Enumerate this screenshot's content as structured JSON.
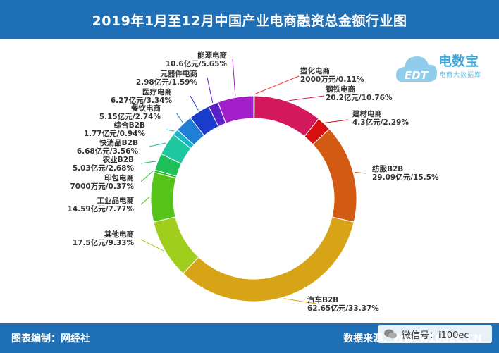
{
  "header": {
    "title": "2019年1月至12月中国产业电商融资总金额行业图"
  },
  "footer": {
    "left": "图表编制：网经社",
    "right": "数据来源：WWW.100EC.CN",
    "watermark": "微信号：i100ec"
  },
  "logo": {
    "text": "电数宝",
    "sub": "电商大数据库",
    "badge": "EDT"
  },
  "colors": {
    "header_bg": "#1e6fb5",
    "footer_bg": "#1e6fb5"
  },
  "chart_data": {
    "type": "pie",
    "style": "donut",
    "slices": [
      {
        "name": "塑化电商",
        "value": 0.2,
        "label": "2000万元/0.11%",
        "color": "#ff3030"
      },
      {
        "name": "钢铁电商",
        "value": 20.2,
        "label": "20.2亿元/10.76%",
        "color": "#d4185c"
      },
      {
        "name": "建材电商",
        "value": 4.3,
        "label": "4.3亿元/2.29%",
        "color": "#d81010"
      },
      {
        "name": "纺服B2B",
        "value": 29.09,
        "label": "29.09亿元/15.5%",
        "color": "#d25a12"
      },
      {
        "name": "汽车B2B",
        "value": 62.65,
        "label": "62.65亿元/33.37%",
        "color": "#d7a418"
      },
      {
        "name": "其他电商",
        "value": 17.5,
        "label": "17.5亿元/9.33%",
        "color": "#9fce1c"
      },
      {
        "name": "工业品电商",
        "value": 14.59,
        "label": "14.59亿元/7.77%",
        "color": "#56c318"
      },
      {
        "name": "印包电商",
        "value": 0.7,
        "label": "7000万元/0.37%",
        "color": "#2eb82e"
      },
      {
        "name": "农业B2B",
        "value": 5.03,
        "label": "5.03亿元/2.68%",
        "color": "#1fbf5a"
      },
      {
        "name": "快消品B2B",
        "value": 6.68,
        "label": "6.68亿元/3.56%",
        "color": "#1ec7a0"
      },
      {
        "name": "综合B2B",
        "value": 1.77,
        "label": "1.77亿元/0.94%",
        "color": "#18b6c8"
      },
      {
        "name": "餐饮电商",
        "value": 5.15,
        "label": "5.15亿元/2.74%",
        "color": "#1f7fd6"
      },
      {
        "name": "医疗电商",
        "value": 6.27,
        "label": "6.27亿元/3.34%",
        "color": "#1a3ccc"
      },
      {
        "name": "元器件电商",
        "value": 2.98,
        "label": "2.98亿元/1.59%",
        "color": "#5a1fc8"
      },
      {
        "name": "能源电商",
        "value": 10.6,
        "label": "10.6亿元/5.65%",
        "color": "#a21ec8"
      }
    ]
  }
}
